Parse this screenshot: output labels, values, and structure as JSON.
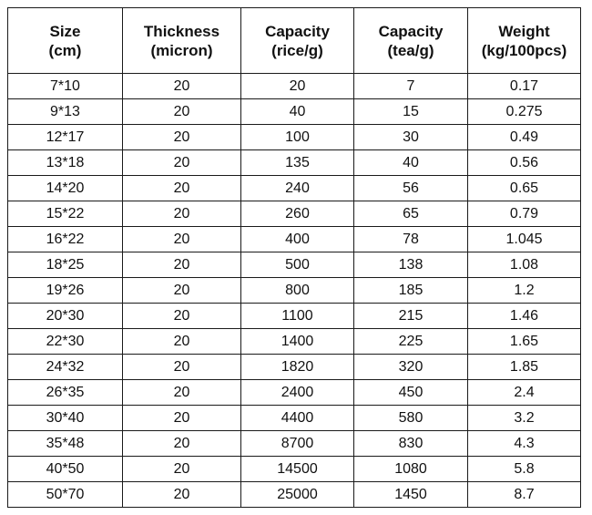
{
  "table": {
    "headers": [
      [
        "Size",
        "(cm)"
      ],
      [
        "Thickness",
        "(micron)"
      ],
      [
        "Capacity",
        "(rice/g)"
      ],
      [
        "Capacity",
        "(tea/g)"
      ],
      [
        "Weight",
        "(kg/100pcs)"
      ]
    ],
    "rows": [
      [
        "7*10",
        "20",
        "20",
        "7",
        "0.17"
      ],
      [
        "9*13",
        "20",
        "40",
        "15",
        "0.275"
      ],
      [
        "12*17",
        "20",
        "100",
        "30",
        "0.49"
      ],
      [
        "13*18",
        "20",
        "135",
        "40",
        "0.56"
      ],
      [
        "14*20",
        "20",
        "240",
        "56",
        "0.65"
      ],
      [
        "15*22",
        "20",
        "260",
        "65",
        "0.79"
      ],
      [
        "16*22",
        "20",
        "400",
        "78",
        "1.045"
      ],
      [
        "18*25",
        "20",
        "500",
        "138",
        "1.08"
      ],
      [
        "19*26",
        "20",
        "800",
        "185",
        "1.2"
      ],
      [
        "20*30",
        "20",
        "1100",
        "215",
        "1.46"
      ],
      [
        "22*30",
        "20",
        "1400",
        "225",
        "1.65"
      ],
      [
        "24*32",
        "20",
        "1820",
        "320",
        "1.85"
      ],
      [
        "26*35",
        "20",
        "2400",
        "450",
        "2.4"
      ],
      [
        "30*40",
        "20",
        "4400",
        "580",
        "3.2"
      ],
      [
        "35*48",
        "20",
        "8700",
        "830",
        "4.3"
      ],
      [
        "40*50",
        "20",
        "14500",
        "1080",
        "5.8"
      ],
      [
        "50*70",
        "20",
        "25000",
        "1450",
        "8.7"
      ]
    ]
  }
}
